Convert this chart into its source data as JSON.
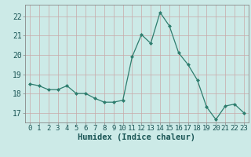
{
  "x": [
    0,
    1,
    2,
    3,
    4,
    5,
    6,
    7,
    8,
    9,
    10,
    11,
    12,
    13,
    14,
    15,
    16,
    17,
    18,
    19,
    20,
    21,
    22,
    23
  ],
  "y": [
    18.5,
    18.4,
    18.2,
    18.2,
    18.4,
    18.0,
    18.0,
    17.75,
    17.55,
    17.55,
    17.65,
    19.9,
    21.05,
    20.6,
    22.2,
    21.5,
    20.1,
    19.5,
    18.7,
    17.3,
    16.65,
    17.35,
    17.45,
    17.0
  ],
  "line_color": "#2e7d6e",
  "marker_color": "#2e7d6e",
  "bg_color": "#cceae7",
  "grid_major_color": "#c8a8a8",
  "grid_minor_color": "#ddc8c8",
  "xlabel": "Humidex (Indice chaleur)",
  "xlabel_fontsize": 7.5,
  "tick_fontsize": 6.5,
  "ytick_fontsize": 7.0,
  "ylim_min": 16.5,
  "ylim_max": 22.6,
  "yticks": [
    17,
    18,
    19,
    20,
    21,
    22
  ]
}
